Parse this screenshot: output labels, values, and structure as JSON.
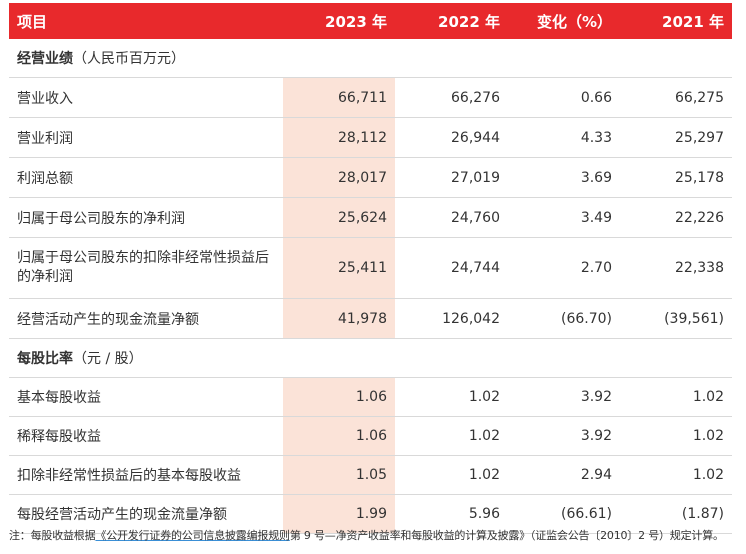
{
  "header": {
    "item": "项目",
    "y2023": "2023 年",
    "y2022": "2022 年",
    "change": "变化（%）",
    "y2021": "2021 年"
  },
  "sections": {
    "performance_title": "经营业绩",
    "performance_unit": "（人民币百万元）",
    "per_share_title": "每股比率",
    "per_share_unit": "（元 / 股）"
  },
  "performance_rows": [
    {
      "label": "营业收入",
      "y2023": "66,711",
      "y2022": "66,276",
      "change": "0.66",
      "y2021": "66,275"
    },
    {
      "label": "营业利润",
      "y2023": "28,112",
      "y2022": "26,944",
      "change": "4.33",
      "y2021": "25,297"
    },
    {
      "label": "利润总额",
      "y2023": "28,017",
      "y2022": "27,019",
      "change": "3.69",
      "y2021": "25,178"
    },
    {
      "label": "归属于母公司股东的净利润",
      "y2023": "25,624",
      "y2022": "24,760",
      "change": "3.49",
      "y2021": "22,226"
    },
    {
      "label": "归属于母公司股东的扣除非经常性损益后的净利润",
      "y2023": "25,411",
      "y2022": "24,744",
      "change": "2.70",
      "y2021": "22,338"
    },
    {
      "label": "经营活动产生的现金流量净额",
      "y2023": "41,978",
      "y2022": "126,042",
      "change": "(66.70)",
      "y2021": "(39,561)"
    }
  ],
  "per_share_rows": [
    {
      "label": "基本每股收益",
      "y2023": "1.06",
      "y2022": "1.02",
      "change": "3.92",
      "y2021": "1.02"
    },
    {
      "label": "稀释每股收益",
      "y2023": "1.06",
      "y2022": "1.02",
      "change": "3.92",
      "y2021": "1.02"
    },
    {
      "label": "扣除非经常性损益后的基本每股收益",
      "y2023": "1.05",
      "y2022": "1.02",
      "change": "2.94",
      "y2021": "1.02"
    },
    {
      "label": "每股经营活动产生的现金流量净额",
      "y2023": "1.99",
      "y2022": "5.96",
      "change": "(66.61)",
      "y2021": "(1.87)"
    }
  ],
  "note": {
    "prefix": "注：每股收益根据",
    "link": "《公开发行证券的公司信息披露编报规则",
    "suffix": "第 9 号—净资产收益率和每股收益的计算及披露》（证监会公告〔2010〕2 号）规定计算。"
  },
  "colors": {
    "header_bg": "#e8292c",
    "highlight_bg": "#fbe3d8",
    "rule": "#d9d9d9"
  }
}
